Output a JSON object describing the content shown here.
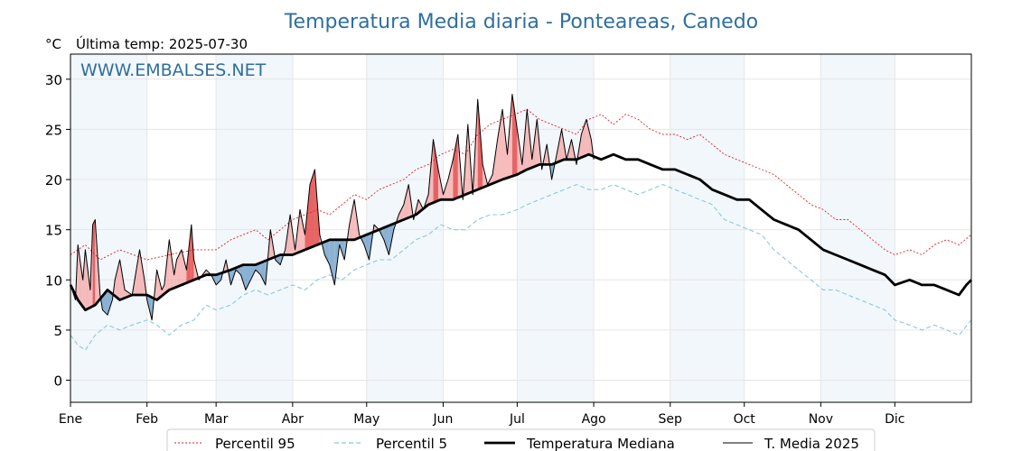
{
  "title": "Temperatura Media diaria - Ponteareas, Canedo",
  "unit": "°C",
  "last_temp": "Última temp: 2025-07-30",
  "watermark": "WWW.EMBALSES.NET",
  "colors": {
    "p95": "#e02020",
    "p5": "#8ec7dc",
    "median": "#000000",
    "current": "#000000",
    "above": "#f4a5a5",
    "above_strong": "#e03030",
    "below": "#6f9fc8",
    "band": "#f2f7fc",
    "grid": "#e6e6e6",
    "title": "#2e6f9e"
  },
  "chart_data": {
    "type": "line",
    "title": "Temperatura Media diaria - Ponteareas, Canedo",
    "ylabel": "°C",
    "ylim": [
      -2.2,
      32.5
    ],
    "xlim": [
      0,
      365
    ],
    "yticks": [
      0,
      5,
      10,
      15,
      20,
      25,
      30
    ],
    "months": [
      "Ene",
      "Feb",
      "Mar",
      "Abr",
      "May",
      "Jun",
      "Jul",
      "Ago",
      "Sep",
      "Oct",
      "Nov",
      "Dic"
    ],
    "month_start_days": [
      0,
      31,
      59,
      90,
      120,
      151,
      181,
      212,
      243,
      273,
      304,
      334
    ],
    "grid": true,
    "legend_position": "bottom",
    "series": [
      {
        "name": "Percentil 95",
        "style": "dotted-red",
        "x": [
          0,
          6,
          12,
          20,
          31,
          40,
          50,
          59,
          65,
          70,
          75,
          80,
          85,
          90,
          95,
          100,
          105,
          110,
          115,
          120,
          125,
          130,
          135,
          140,
          145,
          150,
          155,
          160,
          165,
          170,
          175,
          180,
          185,
          190,
          195,
          200,
          205,
          210,
          215,
          220,
          225,
          230,
          235,
          240,
          245,
          250,
          255,
          260,
          265,
          270,
          275,
          280,
          285,
          290,
          295,
          300,
          305,
          310,
          315,
          320,
          325,
          330,
          334,
          340,
          345,
          350,
          355,
          360,
          365
        ],
        "values": [
          12.5,
          13.5,
          12.0,
          13.0,
          12.0,
          12.5,
          13.0,
          13.0,
          14.0,
          14.5,
          15.0,
          14.0,
          15.0,
          16.0,
          16.5,
          17.0,
          16.5,
          17.5,
          18.5,
          18.0,
          19.0,
          19.5,
          20.0,
          21.0,
          21.5,
          22.5,
          23.0,
          22.5,
          24.5,
          25.5,
          26.0,
          26.5,
          27.0,
          26.0,
          25.5,
          25.0,
          24.5,
          26.0,
          26.5,
          25.5,
          26.5,
          26.0,
          25.0,
          24.5,
          24.5,
          24.0,
          24.5,
          23.5,
          22.5,
          22.0,
          21.5,
          21.0,
          20.5,
          19.5,
          18.5,
          17.5,
          17.0,
          16.0,
          16.0,
          15.0,
          14.0,
          13.0,
          12.5,
          13.0,
          12.5,
          13.5,
          14.0,
          13.5,
          14.5
        ]
      },
      {
        "name": "Percentil 5",
        "style": "dashed-lightblue",
        "x": [
          0,
          3,
          6,
          10,
          15,
          20,
          25,
          31,
          35,
          40,
          45,
          50,
          55,
          59,
          65,
          70,
          75,
          80,
          85,
          90,
          95,
          100,
          105,
          110,
          115,
          120,
          125,
          130,
          135,
          140,
          145,
          150,
          155,
          160,
          165,
          170,
          175,
          181,
          185,
          190,
          195,
          200,
          205,
          210,
          215,
          220,
          225,
          230,
          235,
          240,
          245,
          250,
          255,
          260,
          265,
          270,
          275,
          280,
          285,
          290,
          295,
          300,
          305,
          310,
          315,
          320,
          325,
          330,
          334,
          340,
          345,
          350,
          355,
          360,
          365
        ],
        "values": [
          4.5,
          3.5,
          3.0,
          4.5,
          5.5,
          5.0,
          5.5,
          6.0,
          5.5,
          4.5,
          5.5,
          6.0,
          7.5,
          7.0,
          7.5,
          8.5,
          9.0,
          8.5,
          9.0,
          9.5,
          9.0,
          10.0,
          10.5,
          10.0,
          11.0,
          11.5,
          12.0,
          12.0,
          13.0,
          14.0,
          14.5,
          15.5,
          15.0,
          15.0,
          16.0,
          16.5,
          16.5,
          17.0,
          17.5,
          18.0,
          18.5,
          19.0,
          19.5,
          19.0,
          19.0,
          19.5,
          19.0,
          18.5,
          19.0,
          19.5,
          19.0,
          18.5,
          18.0,
          17.5,
          16.0,
          15.5,
          15.0,
          14.5,
          13.0,
          12.0,
          11.0,
          10.0,
          9.0,
          9.0,
          8.5,
          8.0,
          7.5,
          7.0,
          6.0,
          5.5,
          5.0,
          5.5,
          5.0,
          4.5,
          6.0
        ]
      },
      {
        "name": "Temperatura Mediana",
        "style": "thick-black",
        "x": [
          0,
          3,
          6,
          10,
          15,
          20,
          25,
          31,
          35,
          40,
          45,
          50,
          55,
          59,
          65,
          70,
          75,
          80,
          85,
          90,
          95,
          100,
          105,
          110,
          115,
          120,
          125,
          130,
          135,
          140,
          145,
          150,
          155,
          160,
          165,
          170,
          175,
          181,
          185,
          190,
          195,
          200,
          205,
          210,
          215,
          220,
          225,
          230,
          235,
          240,
          245,
          250,
          255,
          260,
          265,
          270,
          275,
          280,
          285,
          290,
          295,
          300,
          305,
          310,
          315,
          320,
          325,
          330,
          334,
          340,
          345,
          350,
          355,
          360,
          363,
          365
        ],
        "values": [
          9.5,
          8.0,
          7.0,
          7.5,
          9.0,
          8.0,
          8.5,
          8.5,
          8.0,
          9.0,
          9.5,
          10.0,
          10.5,
          10.5,
          11.0,
          11.5,
          11.5,
          12.0,
          12.5,
          12.5,
          13.0,
          13.5,
          14.0,
          14.0,
          14.0,
          14.5,
          15.0,
          15.5,
          16.0,
          16.5,
          17.5,
          18.0,
          18.0,
          18.5,
          19.0,
          19.5,
          20.0,
          20.5,
          21.0,
          21.5,
          21.5,
          22.0,
          22.0,
          22.5,
          22.0,
          22.5,
          22.0,
          22.0,
          21.5,
          21.0,
          21.0,
          20.5,
          20.0,
          19.0,
          18.5,
          18.0,
          18.0,
          17.0,
          16.0,
          15.5,
          15.0,
          14.0,
          13.0,
          12.5,
          12.0,
          11.5,
          11.0,
          10.5,
          9.5,
          10.0,
          9.5,
          9.5,
          9.0,
          8.5,
          9.5,
          10.0
        ]
      },
      {
        "name": "T. Media 2025",
        "style": "thin-black",
        "x": [
          0,
          2,
          3,
          5,
          6,
          8,
          9,
          10,
          12,
          13,
          15,
          17,
          18,
          20,
          22,
          25,
          28,
          30,
          31,
          33,
          35,
          37,
          38,
          40,
          42,
          43,
          45,
          47,
          49,
          50,
          52,
          55,
          57,
          59,
          61,
          63,
          65,
          67,
          69,
          71,
          73,
          75,
          77,
          79,
          81,
          83,
          85,
          87,
          89,
          91,
          93,
          95,
          97,
          99,
          101,
          103,
          105,
          107,
          109,
          111,
          113,
          115,
          117,
          119,
          121,
          123,
          125,
          127,
          129,
          131,
          133,
          135,
          137,
          139,
          141,
          143,
          145,
          147,
          149,
          151,
          153,
          155,
          157,
          159,
          161,
          163,
          165,
          167,
          169,
          171,
          173,
          175,
          177,
          179,
          181,
          183,
          185,
          187,
          189,
          191,
          193,
          195,
          197,
          199,
          201,
          203,
          205,
          207,
          209,
          211,
          212
        ],
        "values": [
          9.5,
          8.0,
          13.5,
          10.0,
          13.0,
          9.0,
          15.5,
          16.0,
          8.5,
          7.0,
          6.5,
          8.0,
          10.0,
          12.0,
          9.0,
          8.5,
          13.0,
          10.0,
          8.0,
          6.0,
          11.0,
          9.0,
          9.5,
          14.0,
          10.5,
          12.0,
          13.0,
          11.0,
          15.5,
          12.0,
          10.0,
          11.0,
          10.5,
          9.5,
          10.0,
          12.0,
          9.5,
          11.0,
          10.5,
          9.0,
          10.0,
          11.0,
          10.5,
          9.5,
          15.0,
          12.0,
          11.5,
          13.0,
          16.5,
          13.0,
          17.0,
          14.5,
          19.5,
          21.0,
          14.5,
          12.5,
          11.5,
          9.5,
          13.5,
          12.0,
          15.5,
          18.0,
          14.5,
          13.5,
          12.0,
          15.5,
          15.0,
          14.0,
          12.5,
          15.0,
          16.5,
          17.5,
          19.5,
          16.0,
          18.0,
          17.0,
          18.5,
          24.0,
          21.0,
          18.5,
          20.0,
          22.0,
          24.5,
          18.0,
          25.5,
          18.5,
          28.0,
          21.5,
          19.5,
          20.5,
          24.0,
          27.0,
          22.5,
          28.5,
          25.0,
          21.5,
          27.0,
          22.0,
          26.0,
          21.0,
          23.5,
          20.0,
          22.5,
          25.0,
          22.0,
          24.0,
          21.5,
          24.5,
          26.0,
          24.0,
          22.0
        ]
      }
    ]
  },
  "legend": {
    "p95": "Percentil 95",
    "p5": "Percentil 5",
    "median": "Temperatura Mediana",
    "current": "T. Media 2025"
  }
}
